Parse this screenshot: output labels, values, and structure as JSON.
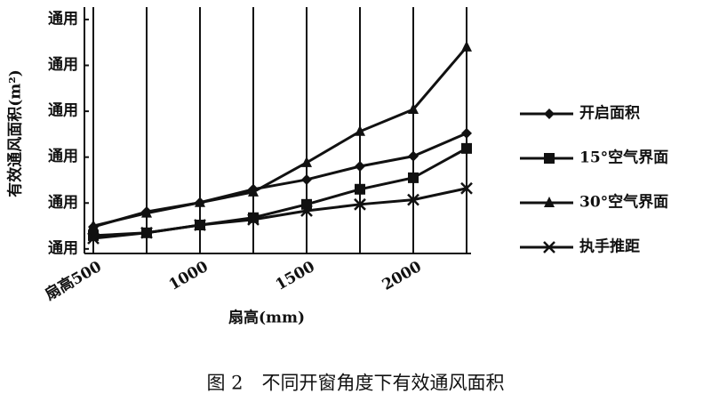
{
  "chart_data": {
    "type": "line",
    "caption": "图 2　不同开窗角度下有效通风面积",
    "x_label": "扇高(mm)",
    "y_label": "有效通风面积(m²)",
    "categories": [
      "扇高500",
      null,
      "1000",
      null,
      "1500",
      null,
      "2000",
      null
    ],
    "ylim": [
      -0.1,
      5.27
    ],
    "yticks": [
      {
        "value": 0,
        "label": "通用"
      },
      {
        "value": 1,
        "label": "通用"
      },
      {
        "value": 2,
        "label": "通用"
      },
      {
        "value": 3,
        "label": "通用"
      },
      {
        "value": 4,
        "label": "通用"
      },
      {
        "value": 5,
        "label": "通用"
      }
    ],
    "grid": "x",
    "legend": "right",
    "series": [
      {
        "name": "开启面积",
        "color": "#111111",
        "marker": "diamond",
        "values": [
          0.48,
          0.81,
          1.01,
          1.3,
          1.51,
          1.8,
          2.02,
          2.52
        ]
      },
      {
        "name": "15°空气界面",
        "color": "#111111",
        "marker": "square",
        "values": [
          0.29,
          0.35,
          0.52,
          0.68,
          0.97,
          1.3,
          1.55,
          2.19
        ]
      },
      {
        "name": "30°空气界面",
        "color": "#111111",
        "marker": "triangle",
        "values": [
          0.5,
          0.78,
          1.01,
          1.24,
          1.88,
          2.56,
          3.04,
          4.4
        ]
      },
      {
        "name": "执手推距",
        "color": "#111111",
        "marker": "x",
        "values": [
          0.23,
          0.35,
          0.52,
          0.64,
          0.83,
          0.97,
          1.07,
          1.32
        ]
      }
    ]
  }
}
